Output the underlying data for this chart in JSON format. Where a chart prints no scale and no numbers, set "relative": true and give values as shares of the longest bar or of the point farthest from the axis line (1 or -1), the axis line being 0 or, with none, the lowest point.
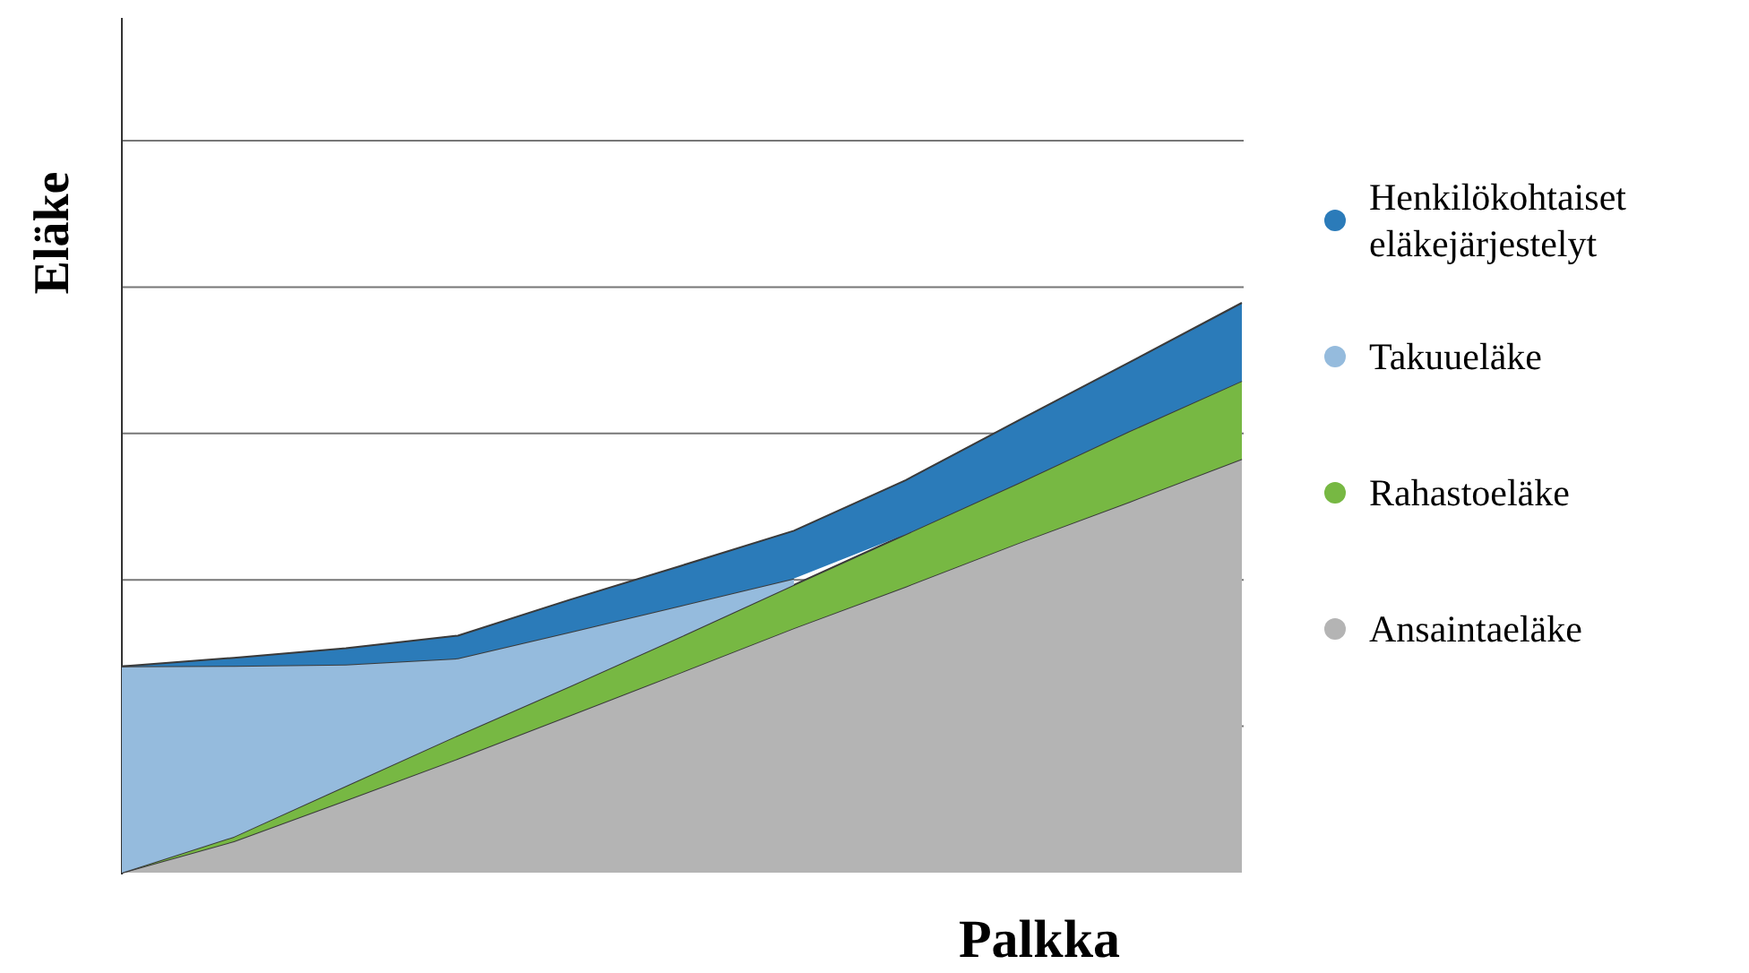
{
  "chart_data": {
    "type": "area",
    "stacked": true,
    "relative": true,
    "xlabel": "Palkka",
    "ylabel": "Eläke",
    "legend": "right",
    "marker": "none",
    "categories": [
      null,
      null,
      null,
      null,
      null,
      null,
      null,
      null,
      null,
      null,
      null
    ],
    "series": [
      {
        "name": "Ansaintaeläke",
        "color": "#b4b4b4",
        "values": [
          0,
          0.055,
          0.127,
          0.2,
          0.276,
          0.352,
          0.429,
          0.502,
          0.578,
          0.651,
          0.726
        ]
      },
      {
        "name": "Rahastoeläke",
        "color": "#77b843",
        "values": [
          0,
          0.008,
          0.025,
          0.041,
          0.051,
          0.063,
          0.076,
          0.092,
          0.105,
          0.124,
          0.137
        ]
      },
      {
        "name": "Takuueläke",
        "color": "#95bbdd",
        "values": [
          0.362,
          0.3,
          0.213,
          0.135,
          0.095,
          0.054,
          0.011,
          null,
          null,
          null,
          null
        ]
      },
      {
        "name": "Henkilökohtaiset eläkejärjestelyt",
        "color": "#2b7bb9",
        "values": [
          0,
          0.014,
          0.029,
          0.04,
          0.057,
          0.07,
          0.084,
          0.095,
          0.11,
          0.121,
          0.137
        ]
      }
    ]
  }
}
